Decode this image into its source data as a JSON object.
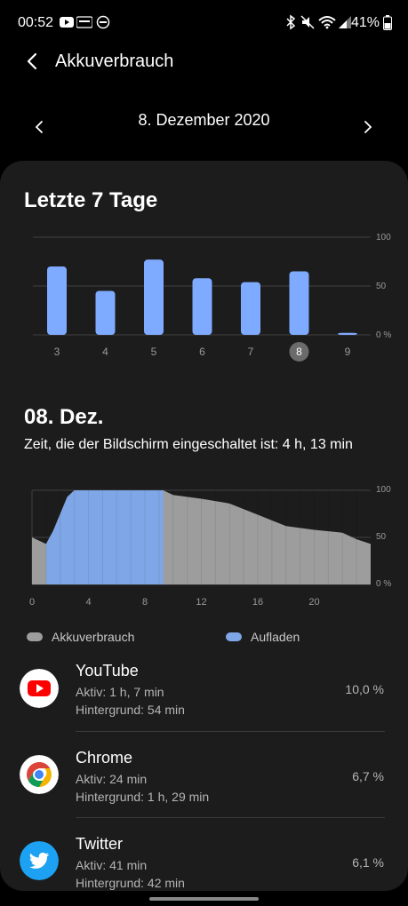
{
  "status": {
    "time": "00:52",
    "battery": "41%"
  },
  "header": {
    "title": "Akkuverbrauch",
    "date": "8. Dezember 2020"
  },
  "weekly": {
    "title": "Letzte 7 Tage",
    "y_ticks": [
      "100",
      "50",
      "0 %"
    ]
  },
  "day": {
    "title": "08. Dez.",
    "screen_time": "Zeit, die der Bildschirm eingeschaltet ist: 4 h, 13 min",
    "y_ticks": [
      "100",
      "50",
      "0 %"
    ],
    "x_ticks": [
      "0",
      "4",
      "8",
      "12",
      "16",
      "20"
    ]
  },
  "legend": {
    "usage": "Akkuverbrauch",
    "charging": "Aufladen"
  },
  "colors": {
    "bar": "#7eaaff",
    "charge": "#7fa6e6",
    "usage": "#9d9d9d",
    "card": "#1c1c1c"
  },
  "apps": [
    {
      "name": "YouTube",
      "active": "Aktiv: 1 h, 7 min",
      "background": "Hintergrund: 54 min",
      "percent": "10,0 %",
      "icon": "youtube-icon"
    },
    {
      "name": "Chrome",
      "active": "Aktiv: 24 min",
      "background": "Hintergrund: 1 h, 29 min",
      "percent": "6,7 %",
      "icon": "chrome-icon"
    },
    {
      "name": "Twitter",
      "active": "Aktiv: 41 min",
      "background": "Hintergrund: 42 min",
      "percent": "6,1 %",
      "icon": "twitter-icon"
    }
  ],
  "chart_data": [
    {
      "type": "bar",
      "categories": [
        "3",
        "4",
        "5",
        "6",
        "7",
        "8",
        "9"
      ],
      "values": [
        70,
        45,
        77,
        58,
        54,
        65,
        2
      ],
      "selected": "8",
      "ylim": [
        0,
        100
      ],
      "grid": true
    },
    {
      "type": "area",
      "x": [
        0,
        1,
        1.5,
        2,
        2.5,
        3,
        3.5,
        4,
        6,
        8,
        9.3,
        10,
        12,
        14,
        16,
        18,
        20,
        22,
        23,
        24
      ],
      "y": [
        50,
        43,
        57,
        75,
        93,
        100,
        100,
        100,
        100,
        100,
        100,
        95,
        91,
        86,
        74,
        62,
        58,
        55,
        48,
        43
      ],
      "charging_range": [
        1,
        9.3
      ],
      "xlim": [
        0,
        24
      ],
      "ylim": [
        0,
        100
      ],
      "grid": true
    }
  ]
}
